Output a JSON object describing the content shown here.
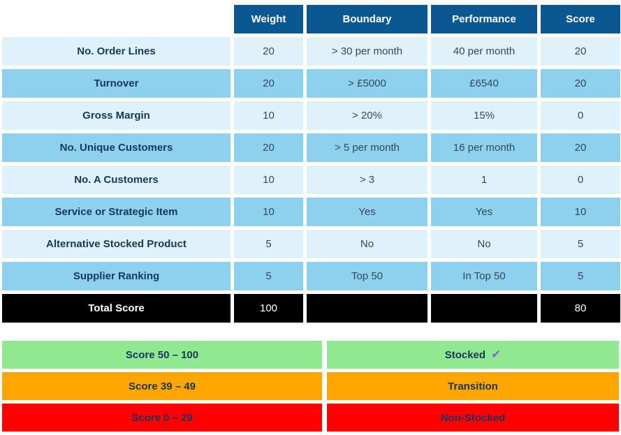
{
  "table": {
    "headers": [
      "Weight",
      "Boundary",
      "Performance",
      "Score"
    ],
    "rows": [
      {
        "label": "No. Order Lines",
        "weight": "20",
        "boundary": "> 30 per month",
        "performance": "40 per month",
        "score": "20"
      },
      {
        "label": "Turnover",
        "weight": "20",
        "boundary": "> £5000",
        "performance": "£6540",
        "score": "20"
      },
      {
        "label": "Gross Margin",
        "weight": "10",
        "boundary": "> 20%",
        "performance": "15%",
        "score": "0"
      },
      {
        "label": "No. Unique Customers",
        "weight": "20",
        "boundary": "> 5 per month",
        "performance": "16 per month",
        "score": "20"
      },
      {
        "label": "No. A Customers",
        "weight": "10",
        "boundary": "> 3",
        "performance": "1",
        "score": "0"
      },
      {
        "label": "Service or Strategic Item",
        "weight": "10",
        "boundary": "Yes",
        "performance": "Yes",
        "score": "10"
      },
      {
        "label": "Alternative Stocked Product",
        "weight": "5",
        "boundary": "No",
        "performance": "No",
        "score": "5"
      },
      {
        "label": "Supplier Ranking",
        "weight": "5",
        "boundary": "Top 50",
        "performance": "In Top 50",
        "score": "5"
      }
    ],
    "total_row": {
      "label": "Total Score",
      "weight": "100",
      "boundary": "",
      "performance": "",
      "score": "80"
    }
  },
  "legend": {
    "check_icon": "✔",
    "rows": [
      {
        "range": "Score 50 – 100",
        "status": "Stocked",
        "color": "#90E890",
        "has_check": true
      },
      {
        "range": "Score 39 – 49",
        "status": "Transition",
        "color": "#FFA500",
        "has_check": false
      },
      {
        "range": "Score 0 – 29",
        "status": "Non-Stocked",
        "color": "#FF0000",
        "has_check": false
      }
    ]
  },
  "colors": {
    "header_bg": "#0A5792",
    "header_text": "#FFFFFF",
    "row_light": "#DFF2FB",
    "row_dark": "#8DD1EE",
    "total_bg": "#000000",
    "label_text": "#17375D",
    "value_text": "#33475E",
    "legend_green": "#90E890",
    "legend_orange": "#FFA500",
    "legend_red": "#FF0000",
    "check": "#7C68D8"
  }
}
